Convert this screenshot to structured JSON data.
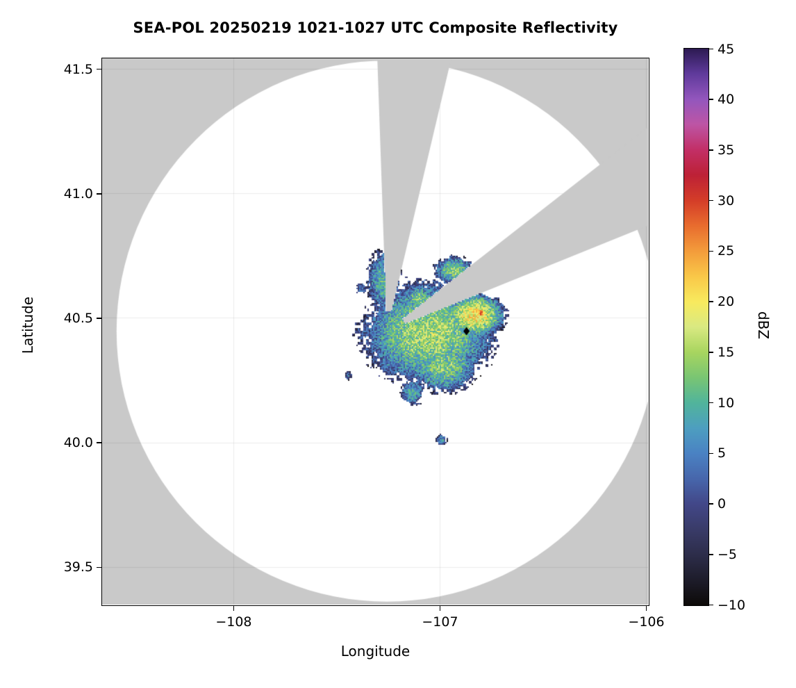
{
  "title": "SEA-POL 20250219 1021-1027 UTC Composite Reflectivity",
  "axes": {
    "xlabel": "Longitude",
    "ylabel": "Latitude"
  },
  "colorbar": {
    "label": "dBZ",
    "vmin": -10,
    "vmax": 45
  },
  "chart_data": {
    "type": "heatmap",
    "title": "SEA-POL 20250219 1021-1027 UTC Composite Reflectivity",
    "xlabel": "Longitude",
    "ylabel": "Latitude",
    "units": "dBZ",
    "xlim": [
      -108.636,
      -105.99
    ],
    "ylim": [
      39.349,
      41.542
    ],
    "xtick_values": [
      -108,
      -107,
      -106
    ],
    "xtick_labels": [
      "−108",
      "−107",
      "−106"
    ],
    "ytick_values": [
      39.5,
      40.0,
      40.5,
      41.0,
      41.5
    ],
    "ytick_labels": [
      "39.5",
      "40.0",
      "40.5",
      "41.0",
      "41.5"
    ],
    "grid": true,
    "legend_position": "right-colorbar",
    "value_range": [
      -10,
      45
    ],
    "colorbar_tick_values": [
      -10,
      -5,
      0,
      5,
      10,
      15,
      20,
      25,
      30,
      35,
      40,
      45
    ],
    "colorbar_tick_labels": [
      "−10",
      "−5",
      "0",
      "5",
      "10",
      "15",
      "20",
      "25",
      "30",
      "35",
      "40",
      "45"
    ],
    "no_data_color": "#c9c9c9",
    "in_range_background": "#ffffff",
    "radar_site": {
      "lon": -107.256,
      "lat": 40.447
    },
    "coverage_radius_deg": {
      "lon": 1.31,
      "lat": 1.086
    },
    "blocked_sectors_azimuth_deg": [
      [
        -2,
        13.3
      ],
      [
        52,
        68
      ]
    ],
    "site_marker": {
      "lon": -106.87,
      "lat": 40.447,
      "shape": "diamond",
      "color": "#000000"
    },
    "colormap_stops": [
      [
        -10,
        "#0d0a08"
      ],
      [
        -7.5,
        "#1d1c2a"
      ],
      [
        -5,
        "#2d2d4a"
      ],
      [
        -2.5,
        "#393b68"
      ],
      [
        0,
        "#424788"
      ],
      [
        2.5,
        "#4766ab"
      ],
      [
        5,
        "#4a82c3"
      ],
      [
        7.5,
        "#4d9ec0"
      ],
      [
        10,
        "#51b49b"
      ],
      [
        12.5,
        "#79c573"
      ],
      [
        15,
        "#a8d55f"
      ],
      [
        17.5,
        "#d9e982"
      ],
      [
        20,
        "#f8ea5e"
      ],
      [
        22.5,
        "#f9c748"
      ],
      [
        25,
        "#f39c3b"
      ],
      [
        27.5,
        "#e86c2e"
      ],
      [
        30,
        "#d43d28"
      ],
      [
        32.5,
        "#bd2136"
      ],
      [
        35,
        "#c22f66"
      ],
      [
        37.5,
        "#bd55a5"
      ],
      [
        40,
        "#9356bd"
      ],
      [
        42.5,
        "#5f3a9b"
      ],
      [
        45,
        "#2c1a52"
      ]
    ],
    "echo_cells_approx": [
      {
        "lon": -107.34,
        "lat": 40.44,
        "rx": 0.1,
        "ry": 0.085,
        "peak": 2
      },
      {
        "lon": -107.3,
        "lat": 40.395,
        "rx": 0.06,
        "ry": 0.05,
        "peak": 1
      },
      {
        "lon": -107.05,
        "lat": 40.44,
        "rx": 0.24,
        "ry": 0.155,
        "peak": 15
      },
      {
        "lon": -107.17,
        "lat": 40.52,
        "rx": 0.09,
        "ry": 0.07,
        "peak": 8
      },
      {
        "lon": -106.83,
        "lat": 40.51,
        "rx": 0.1,
        "ry": 0.06,
        "peak": 20
      },
      {
        "lon": -106.8,
        "lat": 40.52,
        "rx": 0.028,
        "ry": 0.02,
        "peak": 29,
        "fall": 20
      },
      {
        "lon": -107.27,
        "lat": 40.65,
        "rx": 0.07,
        "ry": 0.105,
        "peak": 10
      },
      {
        "lon": -107.38,
        "lat": 40.62,
        "rx": 0.03,
        "ry": 0.025,
        "peak": 4
      },
      {
        "lon": -106.93,
        "lat": 40.69,
        "rx": 0.075,
        "ry": 0.045,
        "peak": 13
      },
      {
        "lon": -107.1,
        "lat": 40.57,
        "rx": 0.055,
        "ry": 0.05,
        "peak": 13
      },
      {
        "lon": -106.98,
        "lat": 40.31,
        "rx": 0.13,
        "ry": 0.085,
        "peak": 13
      },
      {
        "lon": -107.25,
        "lat": 40.33,
        "rx": 0.06,
        "ry": 0.055,
        "peak": 5
      },
      {
        "lon": -107.13,
        "lat": 40.2,
        "rx": 0.05,
        "ry": 0.045,
        "peak": 9
      },
      {
        "lon": -106.99,
        "lat": 40.01,
        "rx": 0.025,
        "ry": 0.02,
        "peak": 7
      },
      {
        "lon": -107.44,
        "lat": 40.27,
        "rx": 0.02,
        "ry": 0.02,
        "peak": 4
      }
    ]
  }
}
